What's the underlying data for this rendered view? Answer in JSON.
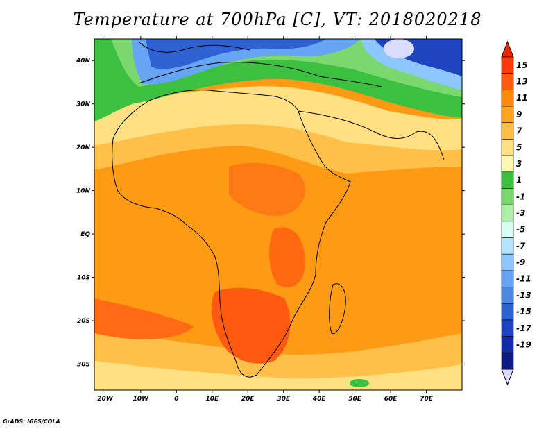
{
  "title": "Temperature at 700hPa [C], VT: 2018020218",
  "footer": "GrADS: IGES/COLA",
  "map": {
    "lon_range": [
      -23,
      80
    ],
    "lat_range": [
      -36,
      45
    ],
    "lat_ticks": [
      {
        "value": 40,
        "label": "40N"
      },
      {
        "value": 30,
        "label": "30N"
      },
      {
        "value": 20,
        "label": "20N"
      },
      {
        "value": 10,
        "label": "10N"
      },
      {
        "value": 0,
        "label": "EQ"
      },
      {
        "value": -10,
        "label": "10S"
      },
      {
        "value": -20,
        "label": "20S"
      },
      {
        "value": -30,
        "label": "30S"
      }
    ],
    "lon_ticks": [
      {
        "value": -20,
        "label": "20W"
      },
      {
        "value": -10,
        "label": "10W"
      },
      {
        "value": 0,
        "label": "0"
      },
      {
        "value": 10,
        "label": "10E"
      },
      {
        "value": 20,
        "label": "20E"
      },
      {
        "value": 30,
        "label": "30E"
      },
      {
        "value": 40,
        "label": "40E"
      },
      {
        "value": 50,
        "label": "50E"
      },
      {
        "value": 60,
        "label": "60E"
      },
      {
        "value": 70,
        "label": "70E"
      }
    ]
  },
  "colorbar": {
    "labels": [
      "15",
      "13",
      "11",
      "9",
      "7",
      "5",
      "3",
      "1",
      "-1",
      "-3",
      "-5",
      "-7",
      "-9",
      "-11",
      "-13",
      "-15",
      "-17",
      "-19"
    ],
    "colors": [
      "#ff3a0a",
      "#ff5a10",
      "#ff8a0a",
      "#ffa41e",
      "#ffc04a",
      "#ffe082",
      "#fff6b0",
      "#3cc040",
      "#7ad86e",
      "#aef0aa",
      "#d8fbf2",
      "#b4e2ff",
      "#8ec6ff",
      "#66a4f4",
      "#4a88e4",
      "#2e62d2",
      "#1e44c0",
      "#0e2aa6",
      "#0a1a82"
    ],
    "overflow_high_color": "#e62800",
    "overflow_low_color": "#dcdcff"
  },
  "regions": [
    {
      "name": "warm-background",
      "color": "#ff9a14"
    },
    {
      "name": "north-africa",
      "color": "#ffe082"
    },
    {
      "name": "mediterranean",
      "color": "#7ad86e"
    },
    {
      "name": "europe",
      "color": "#4a88e4"
    },
    {
      "name": "southern-africa",
      "color": "#ff5a10"
    }
  ]
}
